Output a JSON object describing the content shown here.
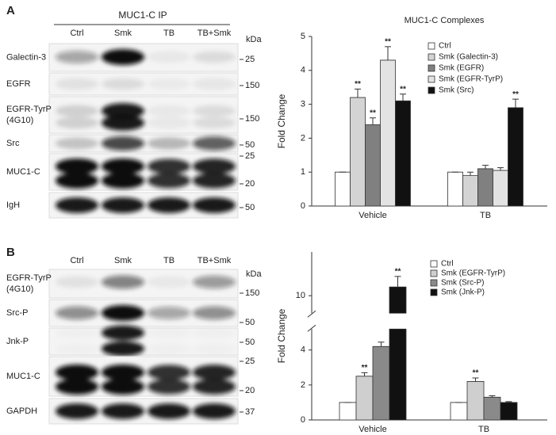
{
  "blots": [
    {
      "label": "A",
      "header": "MUC1-C IP",
      "lanes": [
        "Ctrl",
        "Smk",
        "TB",
        "TB+Smk"
      ],
      "unit": "kDa",
      "rows": [
        {
          "name": [
            "Galectin-3"
          ],
          "markers": [
            25
          ]
        },
        {
          "name": [
            "EGFR"
          ],
          "markers": [
            150
          ]
        },
        {
          "name": [
            "EGFR-TyrP",
            "(4G10)"
          ],
          "markers": [
            150
          ]
        },
        {
          "name": [
            "Src"
          ],
          "markers": [
            50
          ]
        },
        {
          "name": [
            "MUC1-C"
          ],
          "markers": [
            25,
            20
          ]
        },
        {
          "name": [
            "IgH"
          ],
          "markers": [
            50
          ]
        }
      ]
    },
    {
      "label": "B",
      "lanes": [
        "Ctrl",
        "Smk",
        "TB",
        "TB+Smk"
      ],
      "unit": "kDa",
      "rows": [
        {
          "name": [
            "EGFR-TyrP",
            "(4G10)"
          ],
          "markers": [
            150
          ]
        },
        {
          "name": [
            "Src-P"
          ],
          "markers": [
            50
          ]
        },
        {
          "name": [
            "Jnk-P"
          ],
          "markers": [
            50
          ]
        },
        {
          "name": [
            "MUC1-C"
          ],
          "markers": [
            25,
            20
          ]
        },
        {
          "name": [
            "GAPDH"
          ],
          "markers": [
            37
          ]
        }
      ]
    }
  ],
  "chart_data": [
    {
      "type": "bar",
      "title": "MUC1-C Complexes",
      "y_label": "Fold Change",
      "categories": [
        "Vehicle",
        "TB"
      ],
      "ylim": [
        0,
        5
      ],
      "yticks": [
        0,
        1,
        2,
        3,
        4,
        5
      ],
      "series": [
        {
          "name": "Ctrl",
          "color": "#ffffff",
          "values": [
            1,
            1
          ],
          "errors": [
            0,
            0
          ],
          "annotations": [
            null,
            null
          ]
        },
        {
          "name": "Smk (Galectin-3)",
          "color": "#d4d4d4",
          "values": [
            3.2,
            0.9
          ],
          "errors": [
            0.25,
            0.1
          ],
          "annotations": [
            "**",
            null
          ]
        },
        {
          "name": "Smk (EGFR)",
          "color": "#808080",
          "values": [
            2.4,
            1.1
          ],
          "errors": [
            0.2,
            0.1
          ],
          "annotations": [
            "**",
            null
          ]
        },
        {
          "name": "Smk (EGFR-TyrP)",
          "color": "#e3e3e3",
          "values": [
            4.3,
            1.05
          ],
          "errors": [
            0.4,
            0.08
          ],
          "annotations": [
            "**",
            null
          ]
        },
        {
          "name": "Smk (Src)",
          "color": "#111111",
          "values": [
            3.1,
            2.9
          ],
          "errors": [
            0.2,
            0.25
          ],
          "annotations": [
            "**",
            "**"
          ]
        }
      ]
    },
    {
      "type": "bar",
      "y_label": "Fold Change",
      "categories": [
        "Vehicle",
        "TB"
      ],
      "ylim": [
        0,
        12.5
      ],
      "ybreak": [
        5.2,
        9
      ],
      "yticks": [
        0,
        2,
        4,
        10
      ],
      "series": [
        {
          "name": "Ctrl",
          "color": "#ffffff",
          "values": [
            1,
            1
          ],
          "errors": [
            0,
            0
          ],
          "annotations": [
            null,
            null
          ]
        },
        {
          "name": "Smk (EGFR-TyrP)",
          "color": "#cfcfcf",
          "values": [
            2.5,
            2.2
          ],
          "errors": [
            0.2,
            0.2
          ],
          "annotations": [
            "**",
            "**"
          ]
        },
        {
          "name": "Smk (Src-P)",
          "color": "#8a8a8a",
          "values": [
            4.2,
            1.3
          ],
          "errors": [
            0.25,
            0.08
          ],
          "annotations": [
            null,
            null
          ]
        },
        {
          "name": "Smk (Jnk-P)",
          "color": "#111111",
          "values": [
            10.5,
            1.0
          ],
          "errors": [
            0.6,
            0.05
          ],
          "annotations": [
            "**",
            null
          ]
        }
      ]
    }
  ]
}
